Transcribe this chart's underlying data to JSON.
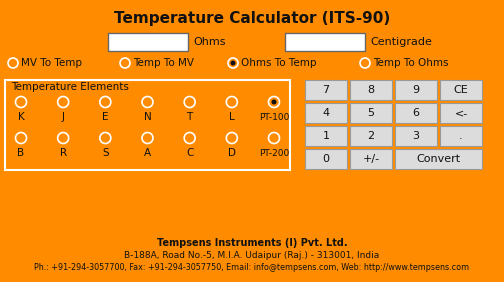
{
  "bg_color": "#FF8C00",
  "title": "Temperature Calculator (ITS-90)",
  "title_fontsize": 11,
  "title_fontweight": "bold",
  "input_box1_label": "Ohms",
  "input_box2_label": "Centigrade",
  "radio_options": [
    "MV To Temp",
    "Temp To MV",
    "Ohms To Temp",
    "Temp To Ohms"
  ],
  "radio_selected": 2,
  "temp_elements_label": "Temperature Elements",
  "temp_elements_row1": [
    "K",
    "J",
    "E",
    "N",
    "T",
    "L",
    "PT-100"
  ],
  "temp_elements_row2": [
    "B",
    "R",
    "S",
    "A",
    "C",
    "D",
    "PT-200"
  ],
  "temp_selected": 6,
  "numpad_buttons": [
    [
      "7",
      "8",
      "9",
      "CE"
    ],
    [
      "4",
      "5",
      "6",
      "<-"
    ],
    [
      "1",
      "2",
      "3",
      "."
    ],
    [
      "0",
      "+/-",
      "Convert"
    ]
  ],
  "footer_line1": "Tempsens Instruments (I) Pvt. Ltd.",
  "footer_line2": "B-188A, Road No.-5, M.I.A. Udaipur (Raj.) - 313001, India",
  "footer_line3": "Ph.: +91-294-3057700, Fax: +91-294-3057750, Email: info@tempsens.com, Web: http://www.tempsens.com",
  "button_bg": "#DCDCDC",
  "button_border": "#999999",
  "text_color": "#111111",
  "white": "#FFFFFF",
  "fig_w": 5.04,
  "fig_h": 2.82,
  "dpi": 100
}
